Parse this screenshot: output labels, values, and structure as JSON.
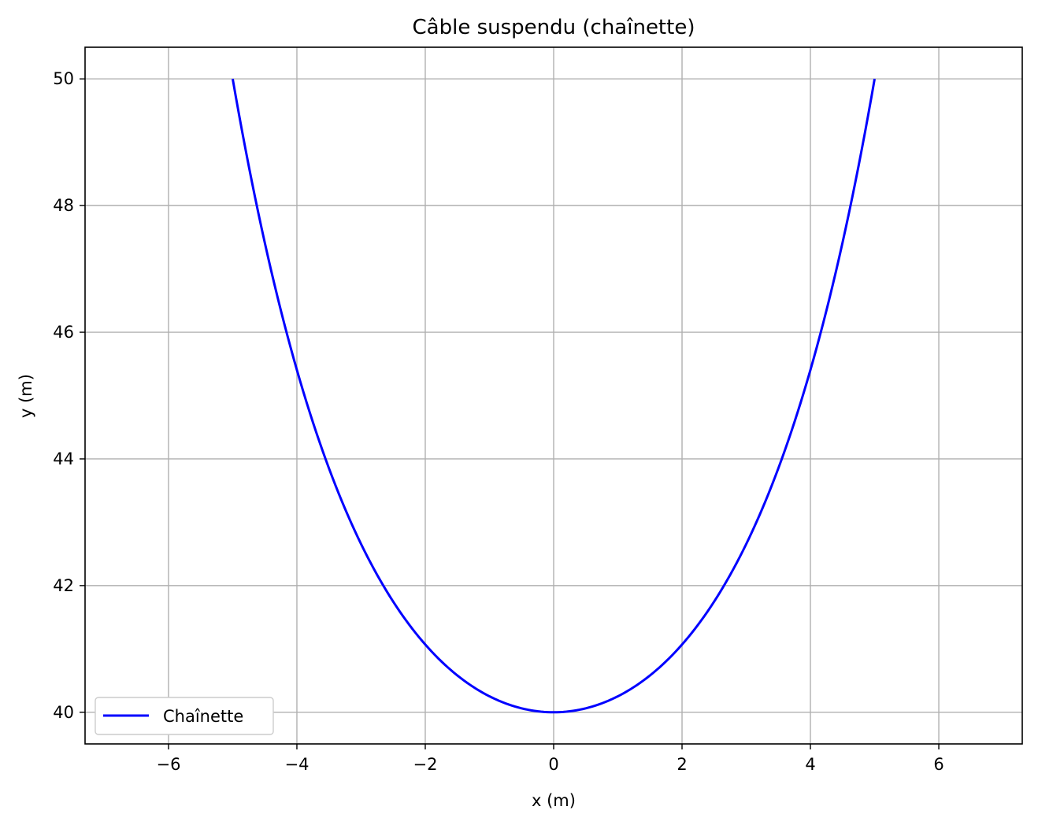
{
  "chart_data": {
    "type": "line",
    "title": "Câble suspendu (chaînette)",
    "xlabel": "x (m)",
    "ylabel": "y (m)",
    "xlim": [
      -7.3,
      7.3
    ],
    "ylim": [
      39.5,
      50.5
    ],
    "xticks": [
      -6,
      -4,
      -2,
      0,
      2,
      4,
      6
    ],
    "yticks": [
      40,
      42,
      44,
      46,
      48,
      50
    ],
    "xtick_labels": [
      "−6",
      "−4",
      "−2",
      "0",
      "2",
      "4",
      "6"
    ],
    "ytick_labels": [
      "40",
      "42",
      "44",
      "46",
      "48",
      "50"
    ],
    "grid": true,
    "legend": "lower-left",
    "series": [
      {
        "name": "Chaînette",
        "color": "#0000ff",
        "x": [
          -5,
          -4.5,
          -4,
          -3.5,
          -3,
          -2.5,
          -2,
          -1.5,
          -1,
          -0.5,
          0,
          0.5,
          1,
          1.5,
          2,
          2.5,
          3,
          3.5,
          4,
          4.5,
          5
        ],
        "y": [
          50.0,
          47.83,
          45.84,
          44.38,
          43.02,
          41.85,
          40.98,
          40.41,
          40.12,
          40.03,
          40.0,
          40.03,
          40.12,
          40.41,
          40.98,
          41.85,
          43.02,
          44.38,
          45.84,
          47.83,
          50.0
        ]
      }
    ]
  }
}
